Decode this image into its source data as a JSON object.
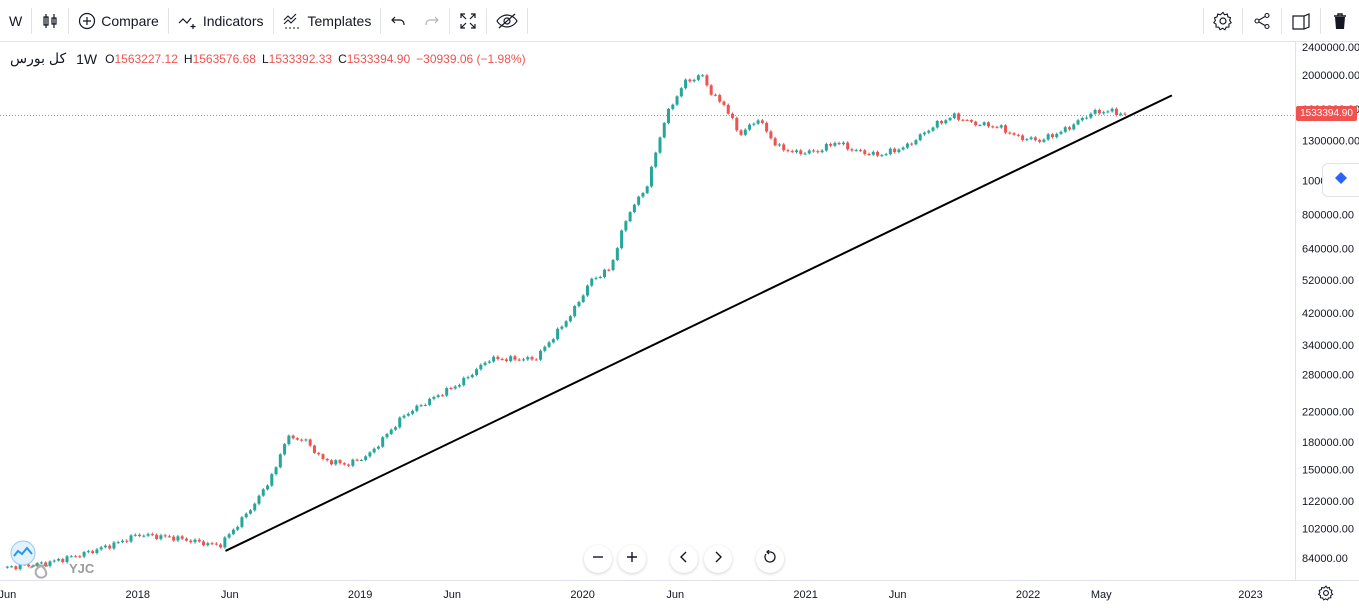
{
  "toolbar": {
    "interval": "W",
    "compare_label": "Compare",
    "indicators_label": "Indicators",
    "templates_label": "Templates"
  },
  "legend": {
    "symbol": "کل بورس",
    "interval": "1W",
    "o_key": "O",
    "o_val": "1563227.12",
    "h_key": "H",
    "h_val": "1563576.68",
    "l_key": "L",
    "l_val": "1533392.33",
    "c_key": "C",
    "c_val": "1533394.90",
    "change": "−30939.06 (−1.98%)"
  },
  "price_badge": "1533394.90",
  "watermark": "YJC",
  "colors": {
    "up": "#26a69a",
    "down": "#ef5350",
    "trendline": "#000000",
    "price_line": "#ef5350"
  },
  "chart_data": {
    "type": "candlestick",
    "title": "",
    "xlabel": "",
    "ylabel": "",
    "y_scale": "log",
    "ylim": [
      70000,
      2600000
    ],
    "y_ticks": [
      2400000,
      2000000,
      1600000,
      1300000,
      1000000,
      800000,
      640000,
      520000,
      420000,
      340000,
      280000,
      220000,
      180000,
      150000,
      122000,
      102000,
      84000
    ],
    "y_tick_labels": [
      "2400000.00",
      "2000000.00",
      "1600000.00",
      "1300000.00",
      "1000000.00",
      "800000.00",
      "640000.00",
      "520000.00",
      "420000.00",
      "340000.00",
      "280000.00",
      "220000.00",
      "180000.00",
      "150000.00",
      "122000.00",
      "102000.00",
      "84000.00"
    ],
    "x_ticks": [
      "2017-06-01",
      "2018-01-01",
      "2018-06-01",
      "2019-01-01",
      "2019-06-01",
      "2020-01-01",
      "2020-06-01",
      "2021-01-01",
      "2021-06-01",
      "2022-01-01",
      "2022-05-01",
      "2023-01-01"
    ],
    "x_tick_labels": [
      "Jun",
      "2018",
      "Jun",
      "2019",
      "Jun",
      "2020",
      "Jun",
      "2021",
      "Jun",
      "2022",
      "May",
      "2023"
    ],
    "x_range": [
      "2017-05-20",
      "2023-03-15"
    ],
    "last_close": 1533394.9,
    "trendline": {
      "start": [
        "2018-05-25",
        88000
      ],
      "end": [
        "2022-08-25",
        1750000
      ]
    },
    "series": [
      {
        "date": "2017-06-01",
        "value": 79000
      },
      {
        "date": "2017-08-01",
        "value": 81000
      },
      {
        "date": "2017-10-01",
        "value": 86000
      },
      {
        "date": "2017-12-01",
        "value": 93000
      },
      {
        "date": "2018-01-01",
        "value": 98000
      },
      {
        "date": "2018-03-01",
        "value": 96000
      },
      {
        "date": "2018-05-15",
        "value": 91000
      },
      {
        "date": "2018-06-15",
        "value": 105000
      },
      {
        "date": "2018-07-15",
        "value": 122000
      },
      {
        "date": "2018-08-15",
        "value": 150000
      },
      {
        "date": "2018-09-01",
        "value": 185000
      },
      {
        "date": "2018-10-01",
        "value": 183000
      },
      {
        "date": "2018-11-01",
        "value": 160000
      },
      {
        "date": "2018-12-10",
        "value": 155000
      },
      {
        "date": "2019-01-15",
        "value": 165000
      },
      {
        "date": "2019-02-15",
        "value": 190000
      },
      {
        "date": "2019-03-15",
        "value": 215000
      },
      {
        "date": "2019-05-01",
        "value": 240000
      },
      {
        "date": "2019-06-15",
        "value": 265000
      },
      {
        "date": "2019-08-01",
        "value": 310000
      },
      {
        "date": "2019-09-01",
        "value": 310000
      },
      {
        "date": "2019-10-15",
        "value": 310000
      },
      {
        "date": "2019-11-15",
        "value": 360000
      },
      {
        "date": "2019-12-15",
        "value": 420000
      },
      {
        "date": "2020-01-15",
        "value": 520000
      },
      {
        "date": "2020-02-15",
        "value": 560000
      },
      {
        "date": "2020-03-15",
        "value": 800000
      },
      {
        "date": "2020-04-15",
        "value": 960000
      },
      {
        "date": "2020-05-15",
        "value": 1500000
      },
      {
        "date": "2020-06-15",
        "value": 1900000
      },
      {
        "date": "2020-07-15",
        "value": 2000000
      },
      {
        "date": "2020-08-01",
        "value": 1750000
      },
      {
        "date": "2020-08-20",
        "value": 1650000
      },
      {
        "date": "2020-09-15",
        "value": 1350000
      },
      {
        "date": "2020-10-15",
        "value": 1500000
      },
      {
        "date": "2020-11-15",
        "value": 1250000
      },
      {
        "date": "2020-12-15",
        "value": 1200000
      },
      {
        "date": "2021-01-20",
        "value": 1210000
      },
      {
        "date": "2021-02-20",
        "value": 1290000
      },
      {
        "date": "2021-03-20",
        "value": 1220000
      },
      {
        "date": "2021-05-01",
        "value": 1180000
      },
      {
        "date": "2021-06-15",
        "value": 1250000
      },
      {
        "date": "2021-08-01",
        "value": 1440000
      },
      {
        "date": "2021-09-01",
        "value": 1530000
      },
      {
        "date": "2021-10-01",
        "value": 1460000
      },
      {
        "date": "2021-11-15",
        "value": 1420000
      },
      {
        "date": "2021-12-15",
        "value": 1330000
      },
      {
        "date": "2022-01-20",
        "value": 1300000
      },
      {
        "date": "2022-03-01",
        "value": 1390000
      },
      {
        "date": "2022-04-15",
        "value": 1560000
      },
      {
        "date": "2022-05-15",
        "value": 1580000
      },
      {
        "date": "2022-06-15",
        "value": 1533394.9
      }
    ]
  }
}
